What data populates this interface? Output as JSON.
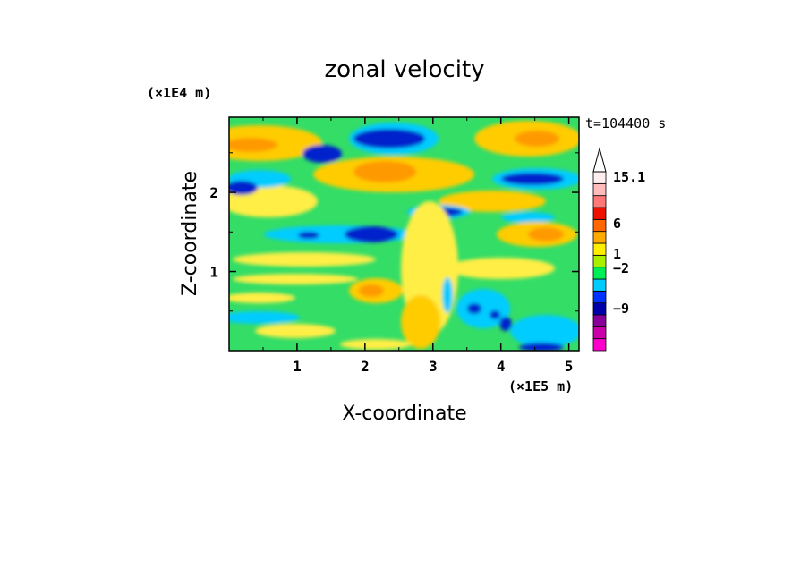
{
  "chart_data": {
    "type": "heatmap",
    "title": "zonal velocity",
    "xlabel": "X-coordinate",
    "ylabel": "Z-coordinate",
    "x_unit": "(×1E5 m)",
    "y_unit": "(×1E4 m)",
    "time_label": "t=104400 s",
    "xlim": [
      0,
      5.15
    ],
    "ylim": [
      0,
      2.95
    ],
    "x_ticks": [
      "1",
      "2",
      "3",
      "4",
      "5"
    ],
    "x_tick_values": [
      1,
      2,
      3,
      4,
      5
    ],
    "y_ticks": [
      "1",
      "2"
    ],
    "y_tick_values": [
      1,
      2
    ],
    "colorbar": {
      "labels": [
        "15.1",
        "6",
        "1",
        "−2",
        "−9"
      ],
      "colors": [
        "#ff00cc",
        "#cc00aa",
        "#880099",
        "#0000aa",
        "#0033ff",
        "#00ccff",
        "#00ee55",
        "#aaee00",
        "#ffee00",
        "#ffaa00",
        "#ff6600",
        "#ee1100",
        "#ff7777",
        "#ffbbbb",
        "#ffeeee"
      ],
      "extend_top": true
    }
  },
  "colors": {
    "background": "#ffffff",
    "axis": "#000000"
  }
}
